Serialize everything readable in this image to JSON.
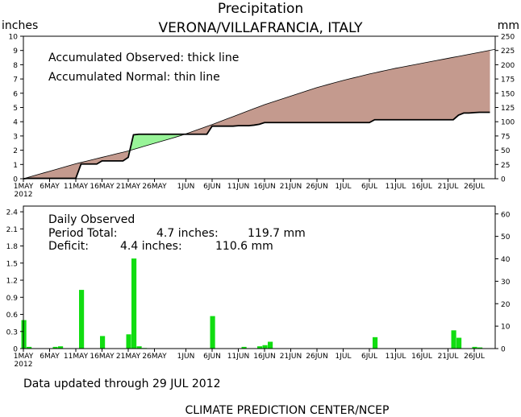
{
  "header": {
    "title": "Precipitation",
    "station": "VERONA/VILLAFRANCIA, ITALY",
    "left_unit": "inches",
    "right_unit": "mm"
  },
  "top_panel": {
    "legend_observed": "Accumulated Observed: thick line",
    "legend_normal": "Accumulated Normal: thin line"
  },
  "bottom_panel": {
    "title": "Daily Observed",
    "period_total_label": "Period Total:",
    "period_total_in": "4.7 inches:",
    "period_total_mm": "119.7 mm",
    "deficit_label": "Deficit:",
    "deficit_in": "4.4 inches:",
    "deficit_mm": "110.6 mm"
  },
  "footer": {
    "updated": "Data updated through 29 JUL 2012",
    "credit": "CLIMATE PREDICTION CENTER/NCEP"
  },
  "colors": {
    "surplus": "#98f498",
    "deficit": "#c49a8e",
    "bars": "#11dd11",
    "axis": "#000000"
  },
  "chart_data": [
    {
      "type": "area",
      "title": "Precipitation",
      "subtitle": "VERONA/VILLAFRANCIA, ITALY",
      "x_unit": "day of period (1 = 1 MAY 2012)",
      "xlim": [
        1,
        91
      ],
      "x_tick_days": [
        1,
        6,
        11,
        16,
        21,
        26,
        32,
        37,
        42,
        47,
        52,
        57,
        62,
        67,
        72,
        77,
        82,
        87
      ],
      "x_tick_labels": [
        "1MAY",
        "6MAY",
        "11MAY",
        "16MAY",
        "21MAY",
        "26MAY",
        "1JUN",
        "6JUN",
        "11JUN",
        "16JUN",
        "21JUN",
        "26JUN",
        "1JUL",
        "6JUL",
        "11JUL",
        "16JUL",
        "21JUL",
        "26JUL"
      ],
      "x_year_label": "2012",
      "ylabel_left": "inches",
      "ylabel_right": "mm",
      "ylim": [
        0,
        10
      ],
      "y_ticks_left": [
        "0",
        "1",
        "2",
        "3",
        "4",
        "5",
        "6",
        "7",
        "8",
        "9",
        "10"
      ],
      "y2lim": [
        0,
        250
      ],
      "y_ticks_right": [
        "0",
        "25",
        "50",
        "75",
        "100",
        "125",
        "150",
        "175",
        "200",
        "225",
        "250"
      ],
      "series": [
        {
          "name": "Accumulated Observed",
          "x": [
            1,
            2,
            11,
            12,
            13,
            14,
            15,
            16,
            17,
            18,
            19,
            20,
            21,
            22,
            23,
            24,
            25,
            26,
            27,
            28,
            29,
            30,
            31,
            32,
            33,
            34,
            35,
            36,
            37,
            38,
            39,
            40,
            41,
            42,
            43,
            44,
            45,
            46,
            47,
            48,
            49,
            50,
            51,
            52,
            53,
            54,
            55,
            56,
            57,
            58,
            59,
            60,
            61,
            62,
            63,
            64,
            65,
            66,
            67,
            68,
            69,
            70,
            71,
            72,
            73,
            74,
            75,
            76,
            77,
            78,
            79,
            80,
            81,
            82,
            83,
            84,
            85,
            86,
            87,
            88,
            89,
            90
          ],
          "values": [
            0.0,
            0.03,
            0.03,
            1.03,
            1.03,
            1.03,
            1.03,
            1.25,
            1.25,
            1.25,
            1.25,
            1.25,
            1.5,
            3.08,
            3.12,
            3.12,
            3.12,
            3.12,
            3.12,
            3.12,
            3.12,
            3.12,
            3.12,
            3.12,
            3.12,
            3.12,
            3.12,
            3.12,
            3.69,
            3.69,
            3.69,
            3.69,
            3.69,
            3.72,
            3.72,
            3.72,
            3.76,
            3.82,
            3.94,
            3.94,
            3.94,
            3.94,
            3.94,
            3.94,
            3.94,
            3.94,
            3.94,
            3.94,
            3.94,
            3.94,
            3.94,
            3.94,
            3.94,
            3.94,
            3.94,
            3.94,
            3.94,
            3.94,
            3.94,
            4.14,
            4.14,
            4.14,
            4.14,
            4.14,
            4.14,
            4.14,
            4.14,
            4.14,
            4.14,
            4.14,
            4.14,
            4.14,
            4.14,
            4.14,
            4.14,
            4.46,
            4.61,
            4.61,
            4.64,
            4.66,
            4.66,
            4.66
          ]
        },
        {
          "name": "Accumulated Normal",
          "x": [
            1,
            11,
            21,
            31,
            37,
            42,
            47,
            52,
            57,
            62,
            67,
            72,
            77,
            82,
            87,
            91
          ],
          "values": [
            0.0,
            1.05,
            1.95,
            3.02,
            3.8,
            4.5,
            5.2,
            5.8,
            6.4,
            6.9,
            7.35,
            7.75,
            8.1,
            8.45,
            8.8,
            9.08
          ]
        }
      ]
    },
    {
      "type": "bar",
      "title": "Daily Observed",
      "x_unit": "day of period (1 = 1 MAY 2012)",
      "xlim": [
        1,
        91
      ],
      "x_tick_days": [
        1,
        6,
        11,
        16,
        21,
        26,
        32,
        37,
        42,
        47,
        52,
        57,
        62,
        67,
        72,
        77,
        82,
        87
      ],
      "x_tick_labels": [
        "1MAY",
        "6MAY",
        "11MAY",
        "16MAY",
        "21MAY",
        "26MAY",
        "1JUN",
        "6JUN",
        "11JUN",
        "16JUN",
        "21JUN",
        "26JUN",
        "1JUL",
        "6JUL",
        "11JUL",
        "16JUL",
        "21JUL",
        "26JUL"
      ],
      "x_year_label": "2012",
      "ylabel_left": "inches",
      "ylabel_right": "mm",
      "ylim": [
        0,
        2.5
      ],
      "y_ticks_left": [
        "0",
        "0.3",
        "0.6",
        "0.9",
        "1.2",
        "1.5",
        "1.8",
        "2.1",
        "2.4"
      ],
      "y_tick_values_left": [
        0,
        0.3,
        0.6,
        0.9,
        1.2,
        1.5,
        1.8,
        2.1,
        2.4
      ],
      "y2lim": [
        0,
        63.5
      ],
      "y_ticks_right": [
        "0",
        "10",
        "20",
        "30",
        "40",
        "50",
        "60"
      ],
      "y_tick_values_right": [
        0,
        10,
        20,
        30,
        40,
        50,
        60
      ],
      "series": [
        {
          "name": "Daily Observed",
          "x": [
            1,
            2,
            7,
            8,
            12,
            16,
            21,
            22,
            23,
            24,
            37,
            43,
            46,
            47,
            48,
            68,
            83,
            84,
            87,
            88
          ],
          "values": [
            0.5,
            0.03,
            0.03,
            0.04,
            1.03,
            0.22,
            0.25,
            1.58,
            0.04,
            0.01,
            0.57,
            0.03,
            0.04,
            0.06,
            0.12,
            0.2,
            0.32,
            0.19,
            0.03,
            0.02
          ]
        }
      ]
    }
  ]
}
